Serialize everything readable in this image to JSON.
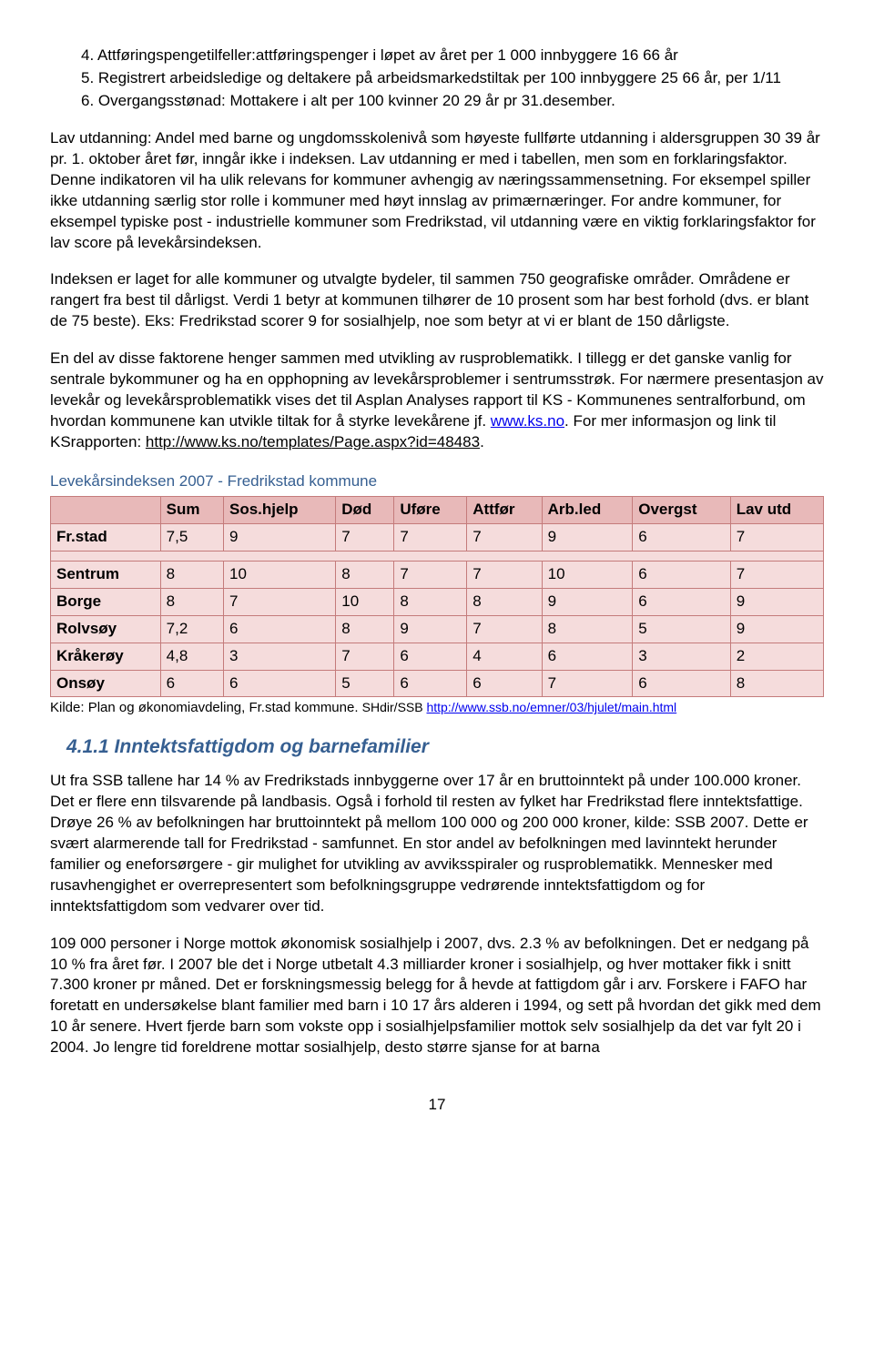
{
  "list": {
    "i4": "4.  Attføringspengetilfeller:attføringspenger i løpet av året per 1 000 innbyggere 16 66 år",
    "i5": "5.  Registrert arbeidsledige og deltakere på arbeidsmarkedstiltak per 100 innbyggere 25 66 år, per 1/11",
    "i6": "6.  Overgangsstønad: Mottakere i alt per 100 kvinner 20 29 år pr 31.desember."
  },
  "para1": "Lav utdanning: Andel med barne og ungdomsskolenivå som høyeste fullførte utdanning i aldersgruppen 30 39 år pr. 1. oktober året før, inngår ikke i indeksen. Lav utdanning er med i tabellen, men som en forklaringsfaktor. Denne indikatoren vil ha ulik relevans for kommuner avhengig av næringssammensetning. For eksempel spiller ikke utdanning særlig stor rolle i kommuner med høyt innslag av primærnæringer. For andre kommuner, for eksempel typiske post - industrielle kommuner som Fredrikstad, vil utdanning være en viktig forklaringsfaktor for lav score på levekårsindeksen.",
  "para2": "Indeksen er laget for alle kommuner og utvalgte bydeler, til sammen 750 geografiske områder. Områdene er rangert fra best til dårligst. Verdi 1 betyr at kommunen tilhører de 10 prosent som har best forhold (dvs. er blant de 75 beste). Eks: Fredrikstad scorer 9 for sosialhjelp, noe som betyr at vi er blant de 150 dårligste.",
  "para3_a": "En del av disse faktorene henger sammen med utvikling av rusproblematikk. I tillegg er det ganske vanlig for sentrale bykommuner og ha en opphopning av levekårsproblemer i sentrumsstrøk. For nærmere presentasjon av levekår og levekårsproblematikk vises det til Asplan Analyses rapport til KS - Kommunenes sentralforbund, om hvordan kommunene kan utvikle tiltak for å styrke levekårene jf. ",
  "para3_link1": "www.ks.no",
  "para3_b": ". For mer informasjon og link til KSrapporten: ",
  "para3_link2": "http://www.ks.no/templates/Page.aspx?id=48483",
  "para3_c": ".",
  "table_title": "Levekårsindeksen 2007 - Fredrikstad kommune",
  "headers": {
    "c0": "",
    "c1": "Sum",
    "c2": "Sos.hjelp",
    "c3": "Død",
    "c4": "Uføre",
    "c5": "Attfør",
    "c6": "Arb.led",
    "c7": "Overgst",
    "c8": "Lav utd"
  },
  "rows": {
    "r0": {
      "label": "Fr.stad",
      "c1": "7,5",
      "c2": "9",
      "c3": "7",
      "c4": "7",
      "c5": "7",
      "c6": "9",
      "c7": "6",
      "c8": "7"
    },
    "r1": {
      "label": "Sentrum",
      "c1": "8",
      "c2": "10",
      "c3": "8",
      "c4": "7",
      "c5": "7",
      "c6": "10",
      "c7": "6",
      "c8": "7"
    },
    "r2": {
      "label": "Borge",
      "c1": "8",
      "c2": "7",
      "c3": "10",
      "c4": "8",
      "c5": "8",
      "c6": "9",
      "c7": "6",
      "c8": "9"
    },
    "r3": {
      "label": "Rolvsøy",
      "c1": "7,2",
      "c2": "6",
      "c3": "8",
      "c4": "9",
      "c5": "7",
      "c6": "8",
      "c7": "5",
      "c8": "9"
    },
    "r4": {
      "label": "Kråkerøy",
      "c1": "4,8",
      "c2": "3",
      "c3": "7",
      "c4": "6",
      "c5": "4",
      "c6": "6",
      "c7": "3",
      "c8": "2"
    },
    "r5": {
      "label": "Onsøy",
      "c1": "6",
      "c2": "6",
      "c3": "5",
      "c4": "6",
      "c5": "6",
      "c6": "7",
      "c7": "6",
      "c8": "8"
    }
  },
  "kilde_a": "Kilde: Plan og økonomiavdeling, Fr.stad kommune. ",
  "kilde_b": "SHdir/SSB ",
  "kilde_link": "http://www.ssb.no/emner/03/hjulet/main.html",
  "subsection": "4.1.1 Inntektsfattigdom og barnefamilier",
  "para4": "Ut fra SSB tallene har 14 % av Fredrikstads innbyggerne over 17 år en bruttoinntekt på under 100.000 kroner. Det er flere enn tilsvarende på landbasis. Også i forhold til resten av fylket har Fredrikstad flere inntektsfattige. Drøye 26 % av befolkningen har bruttoinntekt på mellom 100 000 og 200 000 kroner, kilde: SSB 2007. Dette er svært alarmerende tall for Fredrikstad - samfunnet. En stor andel av befolkningen med lavinntekt  herunder familier og eneforsørgere - gir mulighet for utvikling av avviksspiraler og rusproblematikk. Mennesker med rusavhengighet er overrepresentert som befolkningsgruppe vedrørende inntektsfattigdom og for inntektsfattigdom som vedvarer over tid.",
  "para5": "109 000 personer i Norge mottok økonomisk sosialhjelp i 2007, dvs. 2.3 % av befolkningen. Det er nedgang på 10 % fra året før. I 2007 ble det i Norge utbetalt 4.3 milliarder kroner i sosialhjelp, og hver mottaker fikk i snitt 7.300 kroner pr måned. Det er forskningsmessig belegg for å hevde at fattigdom går i arv. Forskere i FAFO har foretatt en undersøkelse blant familier med barn i 10  17 års alderen i 1994, og sett på hvordan det gikk med dem 10 år senere. Hvert fjerde barn som vokste opp i sosialhjelpsfamilier mottok selv sosialhjelp da det var fylt 20 i 2004. Jo lengre tid foreldrene mottar sosialhjelp, desto større sjanse for at barna",
  "pagenum": "17"
}
